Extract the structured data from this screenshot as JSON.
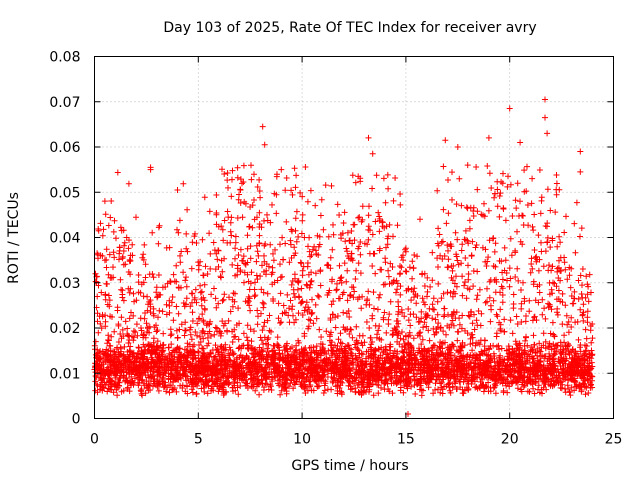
{
  "chart_data": {
    "type": "scatter",
    "title": "Day 103 of 2025, Rate Of TEC Index for receiver avry",
    "xlabel": "GPS time / hours",
    "ylabel": "ROTI / TECUs",
    "xlim": [
      0,
      25
    ],
    "ylim": [
      0,
      0.08
    ],
    "xticks": [
      0,
      5,
      10,
      15,
      20,
      25
    ],
    "xtick_labels": [
      "0",
      "5",
      "10",
      "15",
      "20",
      "25"
    ],
    "yticks": [
      0,
      0.01,
      0.02,
      0.03,
      0.04,
      0.05,
      0.06,
      0.07,
      0.08
    ],
    "ytick_labels": [
      "0",
      "0.01",
      "0.02",
      "0.03",
      "0.04",
      "0.05",
      "0.06",
      "0.07",
      "0.08"
    ],
    "grid": true,
    "marker": "plus",
    "color": "#ff0000",
    "data_range": {
      "x": [
        0,
        24
      ],
      "y": [
        0.0005,
        0.0705
      ]
    },
    "notable_points": [
      {
        "x": 8.1,
        "y": 0.0645
      },
      {
        "x": 8.2,
        "y": 0.0605
      },
      {
        "x": 13.2,
        "y": 0.062
      },
      {
        "x": 13.4,
        "y": 0.0585
      },
      {
        "x": 16.9,
        "y": 0.0615
      },
      {
        "x": 17.5,
        "y": 0.06
      },
      {
        "x": 19.0,
        "y": 0.062
      },
      {
        "x": 20.0,
        "y": 0.0685
      },
      {
        "x": 20.5,
        "y": 0.061
      },
      {
        "x": 21.7,
        "y": 0.0705
      },
      {
        "x": 21.7,
        "y": 0.0665
      },
      {
        "x": 21.8,
        "y": 0.063
      },
      {
        "x": 23.4,
        "y": 0.059
      },
      {
        "x": 23.4,
        "y": 0.0545
      },
      {
        "x": 2.7,
        "y": 0.0555
      },
      {
        "x": 2.7,
        "y": 0.055
      },
      {
        "x": 4.0,
        "y": 0.0505
      },
      {
        "x": 9.0,
        "y": 0.055
      },
      {
        "x": 12.7,
        "y": 0.0535
      },
      {
        "x": 0.2,
        "y": 0.0415
      },
      {
        "x": 15.1,
        "y": 0.001
      }
    ]
  }
}
